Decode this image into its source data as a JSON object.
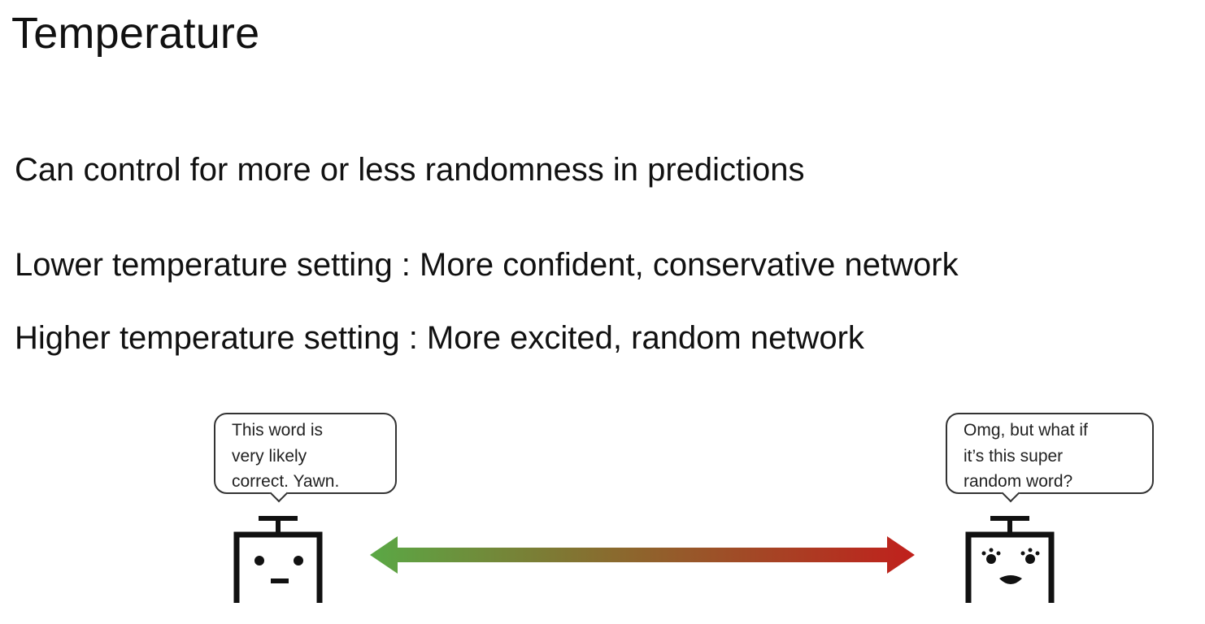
{
  "slide": {
    "title": "Temperature",
    "bullets": [
      "Can control for more or less randomness in predictions",
      "Lower temperature setting : More confident, conservative network",
      "Higher temperature setting : More excited, random network"
    ]
  },
  "illustration": {
    "left_bubble": {
      "lines": [
        "This word is",
        "very likely",
        "correct. Yawn."
      ]
    },
    "right_bubble": {
      "lines": [
        "Omg, but what if",
        "it’s this super",
        "random word?"
      ]
    },
    "left_robot_icon": "bored-robot-icon",
    "right_robot_icon": "excited-robot-icon",
    "arrow_icon": "double-headed-gradient-arrow-icon",
    "colors": {
      "arrow_left": "#5aa845",
      "arrow_middle": "#8a6a2e",
      "arrow_right": "#c0201c",
      "robot_stroke": "#111111"
    }
  }
}
